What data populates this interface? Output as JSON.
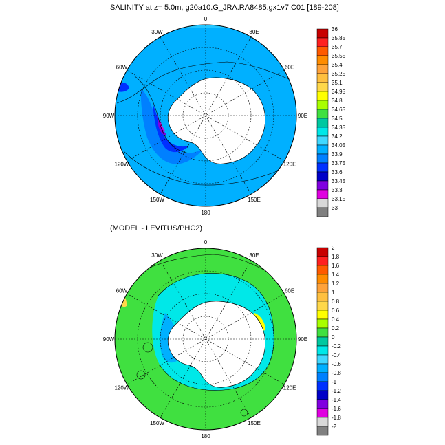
{
  "top_title": "SALINITY at z=   5.0m, g20a10.G_JRA.RA8485.gx1v7.C01 [189-208]",
  "bottom_title": "(MODEL - LEVITUS/PHC2)",
  "meridian_labels": [
    "0",
    "30E",
    "60E",
    "90E",
    "120E",
    "150E",
    "180",
    "150W",
    "120W",
    "90W",
    "60W",
    "30W"
  ],
  "chart_data": [
    {
      "type": "heatmap",
      "title": "SALINITY at z=   5.0m, g20a10.G_JRA.RA8485.gx1v7.C01 [189-208]",
      "projection": "south polar stereographic",
      "colorbar_levels": [
        "36",
        "35.85",
        "35.7",
        "35.55",
        "35.4",
        "35.25",
        "35.1",
        "34.95",
        "34.8",
        "34.65",
        "34.5",
        "34.35",
        "34.2",
        "34.05",
        "33.9",
        "33.75",
        "33.6",
        "33.45",
        "33.3",
        "33.15",
        "33"
      ],
      "colorbar_colors": [
        "#c80000",
        "#ff2020",
        "#ff5a00",
        "#ff8c00",
        "#ffa23a",
        "#ffc040",
        "#ffd84a",
        "#ffff00",
        "#a8ff00",
        "#40e040",
        "#00c8a0",
        "#00e8e8",
        "#40d8ff",
        "#00b0ff",
        "#0080ff",
        "#0030ff",
        "#0000c8",
        "#8000e0",
        "#e000e0",
        "#d8d8d8",
        "#808080"
      ]
    },
    {
      "type": "heatmap",
      "title": "(MODEL - LEVITUS/PHC2)",
      "projection": "south polar stereographic",
      "colorbar_levels": [
        "2",
        "1.8",
        "1.6",
        "1.4",
        "1.2",
        "1",
        "0.8",
        "0.6",
        "0.4",
        "0.2",
        "0",
        "-0.2",
        "-0.4",
        "-0.6",
        "-0.8",
        "-1",
        "-1.2",
        "-1.4",
        "-1.6",
        "-1.8",
        "-2"
      ],
      "colorbar_colors": [
        "#c80000",
        "#ff2020",
        "#ff5a00",
        "#ff8c00",
        "#ffa23a",
        "#ffc040",
        "#ffd84a",
        "#ffff00",
        "#a8ff00",
        "#40e040",
        "#00c8a0",
        "#00e8e8",
        "#40d8ff",
        "#00b0ff",
        "#0080ff",
        "#0030ff",
        "#0000c8",
        "#8000e0",
        "#e000e0",
        "#d8d8d8",
        "#808080"
      ]
    }
  ]
}
